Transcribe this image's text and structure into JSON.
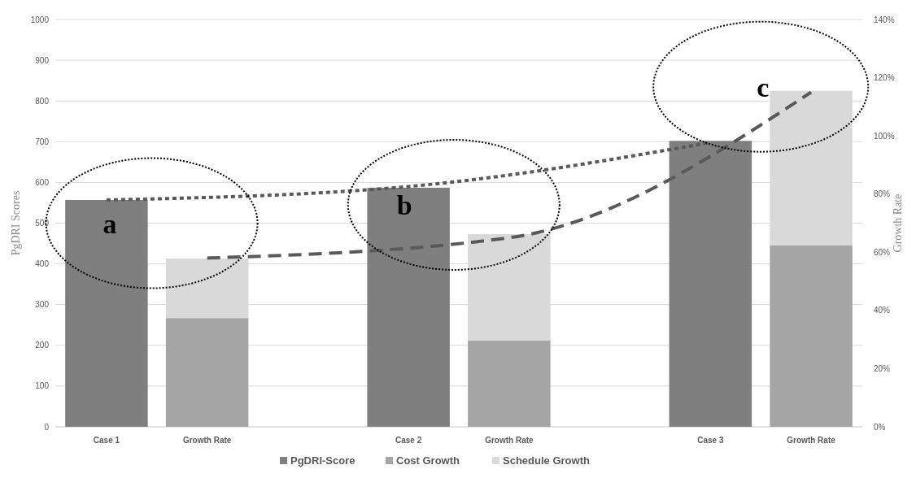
{
  "chart_data": {
    "type": "bar",
    "stacked": true,
    "categories": [
      "Case 1",
      "Growth Rate",
      null,
      "Case 2",
      "Growth Rate",
      null,
      "Case 3",
      "Growth Rate"
    ],
    "series": [
      {
        "name": "PgDRI-Score",
        "color": "#7f7f7f",
        "values": [
          557,
          null,
          null,
          587,
          null,
          null,
          702,
          null
        ]
      },
      {
        "name": "Cost Growth",
        "color": "#a5a5a5",
        "values": [
          null,
          267,
          null,
          null,
          212,
          null,
          null,
          446
        ]
      },
      {
        "name": "Schedule Growth",
        "color": "#d9d9d9",
        "values": [
          null,
          146,
          null,
          null,
          261,
          null,
          null,
          379
        ]
      },
      {
        "type": "line",
        "color": "#595959",
        "line_style": "dotted",
        "values": [
          557,
          null,
          null,
          590,
          null,
          null,
          698,
          null
        ]
      },
      {
        "type": "line",
        "color": "#595959",
        "line_style": "dashed",
        "axis": "y2",
        "values": [
          null,
          58,
          null,
          null,
          65,
          null,
          null,
          115
        ]
      }
    ],
    "ylabel": "PgDRI Scores",
    "y2label": "Growth Rate",
    "ylim": [
      0,
      1000
    ],
    "yticks": [
      0,
      100,
      200,
      300,
      400,
      500,
      600,
      700,
      800,
      900,
      1000
    ],
    "y2lim": [
      0,
      140
    ],
    "y2ticks": [
      {
        "value": 0,
        "label": "0%"
      },
      {
        "value": 20,
        "label": "20%"
      },
      {
        "value": 40,
        "label": "40%"
      },
      {
        "value": 60,
        "label": "60%"
      },
      {
        "value": 80,
        "label": "80%"
      },
      {
        "value": 100,
        "label": "100%"
      },
      {
        "value": 120,
        "label": "120%"
      },
      {
        "value": 140,
        "label": "140%"
      }
    ],
    "annotations": [
      "a",
      "b",
      "c"
    ],
    "grid": "y",
    "legend": "bottom",
    "marker": "none"
  }
}
